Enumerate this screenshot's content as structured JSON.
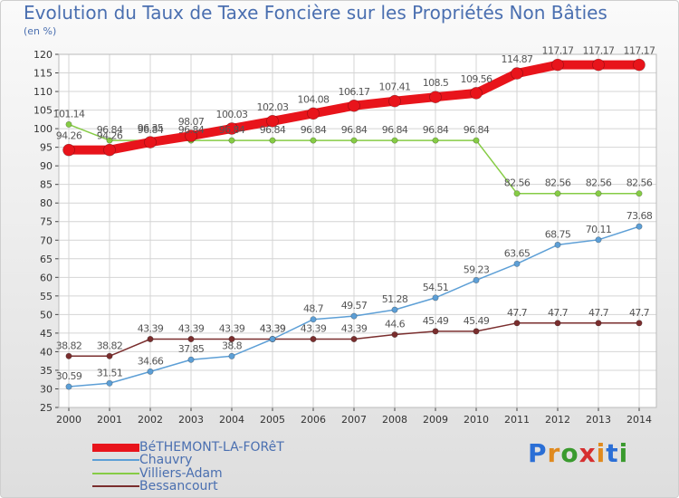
{
  "header": {
    "title": "Evolution du Taux de Taxe Foncière sur les Propriétés Non Bâties",
    "subtitle": "(en %)"
  },
  "colors": {
    "bethemont": "#e8141b",
    "chauvry": "#5d9fd6",
    "villiers": "#86cc45",
    "bessancourt": "#7a2e2e",
    "grid": "#d4d4d4",
    "axis_text": "#333333"
  },
  "chart_data": {
    "type": "line",
    "title": "Evolution du Taux de Taxe Foncière sur les Propriétés Non Bâties",
    "ylabel": "(en %)",
    "xlabel": "",
    "ylim": [
      25,
      120
    ],
    "yticks": [
      25,
      30,
      35,
      40,
      45,
      50,
      55,
      60,
      65,
      70,
      75,
      80,
      85,
      90,
      95,
      100,
      105,
      110,
      115,
      120
    ],
    "categories": [
      "2000",
      "2001",
      "2002",
      "2003",
      "2004",
      "2005",
      "2006",
      "2007",
      "2008",
      "2009",
      "2010",
      "2011",
      "2012",
      "2013",
      "2014"
    ],
    "legend_position": "bottom-left",
    "series": [
      {
        "key": "bethemont",
        "name": "BéTHEMONT-LA-FORêT",
        "values": [
          94.26,
          94.26,
          96.35,
          98.07,
          100.03,
          102.03,
          104.08,
          106.17,
          107.41,
          108.5,
          109.56,
          114.87,
          117.17,
          117.17,
          117.17
        ],
        "labels": [
          "94.26",
          "94.26",
          "96.35",
          "98.07",
          "100.03",
          "102.03",
          "104.08",
          "106.17",
          "107.41",
          "108.5",
          "109.56",
          "114.87",
          "117.17",
          "117.17",
          "117.17"
        ]
      },
      {
        "key": "chauvry",
        "name": "Chauvry",
        "values": [
          30.59,
          31.51,
          34.66,
          37.85,
          38.8,
          43.39,
          48.7,
          49.57,
          51.28,
          54.51,
          59.23,
          63.65,
          68.75,
          70.11,
          73.68
        ],
        "labels": [
          "30.59",
          "31.51",
          "34.66",
          "37.85",
          "38.8",
          "43.39",
          "48.7",
          "49.57",
          "51.28",
          "54.51",
          "59.23",
          "63.65",
          "68.75",
          "70.11",
          "73.68"
        ]
      },
      {
        "key": "villiers",
        "name": "Villiers-Adam",
        "values": [
          101.14,
          96.84,
          96.84,
          96.84,
          96.84,
          96.84,
          96.84,
          96.84,
          96.84,
          96.84,
          96.84,
          82.56,
          82.56,
          82.56,
          82.56
        ],
        "labels": [
          "101.14",
          "96.84",
          "96.84",
          "96.84",
          "96.84",
          "96.84",
          "96.84",
          "96.84",
          "96.84",
          "96.84",
          "96.84",
          "82.56",
          "82.56",
          "82.56",
          "82.56"
        ]
      },
      {
        "key": "bessancourt",
        "name": "Bessancourt",
        "values": [
          38.82,
          38.82,
          43.39,
          43.39,
          43.39,
          43.39,
          43.39,
          43.39,
          44.6,
          45.49,
          45.49,
          47.7,
          47.7,
          47.7,
          47.7
        ],
        "labels": [
          "38.82",
          "38.82",
          "43.39",
          "43.39",
          "43.39",
          "43.39",
          "43.39",
          "43.39",
          "44.6",
          "45.49",
          "45.49",
          "47.7",
          "47.7",
          "47.7",
          "47.7"
        ]
      }
    ]
  },
  "logo": {
    "text": "Proxiti",
    "letter_colors": [
      "#2b6fd6",
      "#e08a1e",
      "#3a9a2e",
      "#d62f2f",
      "#e08a1e",
      "#2b6fd6",
      "#3a9a2e"
    ]
  }
}
